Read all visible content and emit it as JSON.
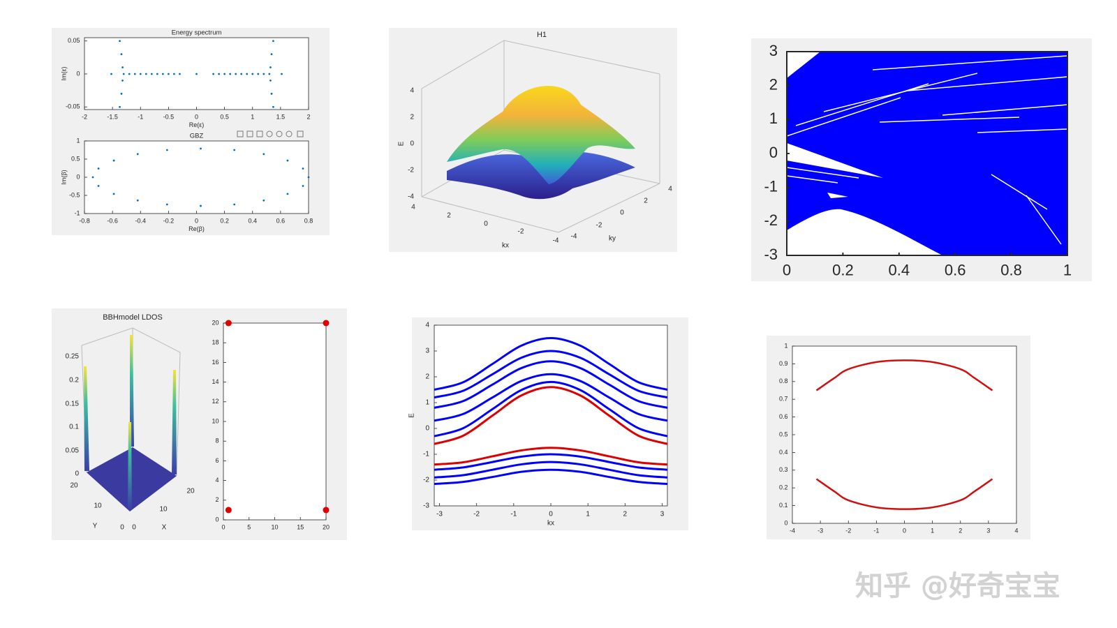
{
  "chart_data": [
    {
      "type": "scatter",
      "title": "Energy spectrum",
      "xlabel": "Re(ε)",
      "ylabel": "Im(ε)",
      "xlim": [
        -2,
        2
      ],
      "ylim": [
        -0.054,
        0.055
      ],
      "xticks": [
        -2,
        -1.5,
        -1,
        -0.5,
        0,
        0.5,
        1,
        1.5,
        2
      ],
      "yticks": [
        -0.05,
        0,
        0.05
      ],
      "color": "#0072bd",
      "x": [
        -1.52,
        -1.3,
        -1.2,
        -1.1,
        -1.0,
        -0.9,
        -0.8,
        -0.7,
        -0.6,
        -0.5,
        -0.4,
        -0.3,
        0,
        0.3,
        0.4,
        0.5,
        0.6,
        0.7,
        0.8,
        0.9,
        1.0,
        1.1,
        1.2,
        1.3,
        1.52,
        -1.37,
        -1.34,
        -1.32,
        -1.32,
        -1.34,
        -1.37,
        1.37,
        1.34,
        1.32,
        1.32,
        1.34,
        1.37
      ],
      "y": [
        0,
        0,
        0,
        0,
        0,
        0,
        0,
        0,
        0,
        0,
        0,
        0,
        0,
        0,
        0,
        0,
        0,
        0,
        0,
        0,
        0,
        0,
        0,
        0,
        0,
        -0.05,
        -0.03,
        -0.01,
        0.01,
        0.03,
        0.05,
        -0.05,
        -0.03,
        -0.01,
        0.01,
        0.03,
        0.05
      ]
    },
    {
      "type": "scatter",
      "title": "GBZ",
      "xlabel": "Re(β)",
      "ylabel": "Im(β)",
      "xlim": [
        -0.8,
        0.8
      ],
      "ylim": [
        -1,
        1
      ],
      "xticks": [
        -0.8,
        -0.6,
        -0.4,
        -0.2,
        0,
        0.2,
        0.4,
        0.6,
        0.8
      ],
      "yticks": [
        -1,
        -0.5,
        0,
        0.5,
        1
      ],
      "color": "#0072bd",
      "x": [
        0.8,
        0.76,
        0.65,
        0.48,
        0.27,
        0.03,
        -0.21,
        -0.42,
        -0.59,
        -0.7,
        -0.74,
        -0.7,
        -0.59,
        -0.42,
        -0.21,
        0.03,
        0.27,
        0.48,
        0.65,
        0.76
      ],
      "y": [
        0,
        0.24,
        0.46,
        0.64,
        0.75,
        0.79,
        0.75,
        0.64,
        0.46,
        0.24,
        0,
        -0.24,
        -0.46,
        -0.64,
        -0.75,
        -0.79,
        -0.75,
        -0.64,
        -0.46,
        -0.24
      ]
    },
    {
      "type": "surface",
      "title": "H1",
      "xlabel": "kx",
      "ylabel": "ky",
      "zlabel": "E",
      "xticks": [
        4,
        2,
        0,
        -2,
        -4
      ],
      "yticks": [
        -4,
        -2,
        0,
        2,
        4
      ],
      "zticks": [
        4,
        2,
        0,
        -2,
        -4
      ]
    },
    {
      "type": "line",
      "xlim": [
        0,
        1
      ],
      "ylim": [
        -3,
        3
      ],
      "xticks": [
        0,
        0.2,
        0.4,
        0.6,
        0.8,
        1
      ],
      "yticks": [
        -3,
        -2,
        -1,
        0,
        1,
        2,
        3
      ],
      "color": "#0000ff"
    },
    {
      "type": "surface",
      "title": "BBHmodel LDOS",
      "xlabel": "X",
      "ylabel": "Y",
      "xticks": [
        0,
        10,
        20
      ],
      "yticks": [
        20,
        10,
        0
      ],
      "zticks": [
        0.25,
        0.2,
        0.15,
        0.1,
        0.05,
        0
      ]
    },
    {
      "type": "scatter",
      "xlim": [
        0,
        20
      ],
      "ylim": [
        0,
        20
      ],
      "xticks": [
        0,
        5,
        10,
        15,
        20
      ],
      "yticks": [
        0,
        2,
        4,
        6,
        8,
        10,
        12,
        14,
        16,
        18,
        20
      ],
      "color": "#e00000",
      "x": [
        1,
        20,
        1,
        20
      ],
      "y": [
        1,
        1,
        20,
        20
      ]
    },
    {
      "type": "line",
      "xlabel": "kx",
      "ylabel": "E",
      "xlim": [
        -3.1416,
        3.1416
      ],
      "ylim": [
        -3,
        4
      ],
      "xticks": [
        -3,
        -2,
        -1,
        0,
        1,
        2,
        3
      ],
      "yticks": [
        -3,
        -2,
        -1,
        0,
        1,
        2,
        3,
        4
      ],
      "x": [
        -3.14,
        -2.36,
        -1.57,
        -0.79,
        0,
        0.79,
        1.57,
        2.36,
        3.14
      ],
      "series": [
        {
          "color": "#0000ff",
          "values": [
            1.5,
            1.79,
            2.5,
            3.21,
            3.5,
            3.21,
            2.5,
            1.79,
            1.5
          ]
        },
        {
          "color": "#0000ff",
          "values": [
            1.2,
            1.46,
            2.1,
            2.74,
            3.0,
            2.74,
            2.1,
            1.46,
            1.2
          ]
        },
        {
          "color": "#0000ff",
          "values": [
            0.8,
            1.06,
            1.7,
            2.34,
            2.6,
            2.34,
            1.7,
            1.06,
            0.8
          ]
        },
        {
          "color": "#0000ff",
          "values": [
            0.3,
            0.56,
            1.2,
            1.84,
            2.1,
            1.84,
            1.2,
            0.56,
            0.3
          ]
        },
        {
          "color": "#0000ff",
          "values": [
            -0.3,
            0.01,
            0.75,
            1.49,
            1.8,
            1.49,
            0.75,
            0.01,
            -0.3
          ]
        },
        {
          "color": "#dd0000",
          "values": [
            -0.6,
            -0.28,
            0.5,
            1.28,
            1.6,
            1.28,
            0.5,
            -0.28,
            -0.6
          ]
        },
        {
          "color": "#0000ff",
          "values": [
            -1.6,
            -1.51,
            -1.3,
            -1.09,
            -1.0,
            -1.09,
            -1.3,
            -1.51,
            -1.6
          ]
        },
        {
          "color": "#0000ff",
          "values": [
            -1.9,
            -1.81,
            -1.6,
            -1.39,
            -1.3,
            -1.39,
            -1.6,
            -1.81,
            -1.9
          ]
        },
        {
          "color": "#0000ff",
          "values": [
            -2.15,
            -2.07,
            -1.88,
            -1.68,
            -1.6,
            -1.68,
            -1.88,
            -2.07,
            -2.15
          ]
        },
        {
          "color": "#dd0000",
          "values": [
            -1.4,
            -1.31,
            -1.08,
            -0.85,
            -0.75,
            -0.85,
            -1.08,
            -1.31,
            -1.4
          ]
        }
      ]
    },
    {
      "type": "line",
      "xlim": [
        -4,
        4
      ],
      "ylim": [
        0,
        1
      ],
      "xticks": [
        -4,
        -3,
        -2,
        -1,
        0,
        1,
        2,
        3,
        4
      ],
      "yticks": [
        0,
        0.1,
        0.2,
        0.3,
        0.4,
        0.5,
        0.6,
        0.7,
        0.8,
        0.9,
        1
      ],
      "x": [
        -3.14,
        -2.5,
        -2,
        -1,
        0,
        1,
        2,
        2.5,
        3.14
      ],
      "series": [
        {
          "color": "#d01010",
          "values": [
            0.75,
            0.82,
            0.87,
            0.91,
            0.92,
            0.91,
            0.87,
            0.82,
            0.75
          ]
        },
        {
          "color": "#d01010",
          "values": [
            0.25,
            0.18,
            0.13,
            0.09,
            0.08,
            0.09,
            0.13,
            0.18,
            0.25
          ]
        }
      ]
    }
  ],
  "watermark": "知乎 @好奇宝宝"
}
